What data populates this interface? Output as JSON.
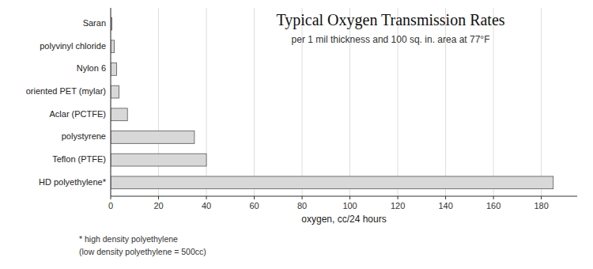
{
  "chart_data": {
    "type": "bar",
    "orientation": "horizontal",
    "title": "Typical Oxygen Transmission Rates",
    "subtitle": "per 1 mil thickness and 100 sq. in. area at 77°F",
    "xlabel": "oxygen, cc/24 hours",
    "annotations": [
      "* high density polyethylene",
      "(low density polyethylene = 500cc)"
    ],
    "categories": [
      "HD polyethylene*",
      "Teflon (PTFE)",
      "polystyrene",
      "Aclar (PCTFE)",
      "oriented PET (mylar)",
      "Nylon 6",
      "polyvinyl chloride",
      "Saran"
    ],
    "values": [
      185,
      40,
      35,
      7,
      3.5,
      2.5,
      1.5,
      0.5
    ],
    "color": "#d8d8d8",
    "xlim": [
      0,
      195
    ],
    "xticks": [
      0,
      20,
      40,
      60,
      80,
      100,
      120,
      140,
      160,
      180
    ],
    "grid": true
  }
}
